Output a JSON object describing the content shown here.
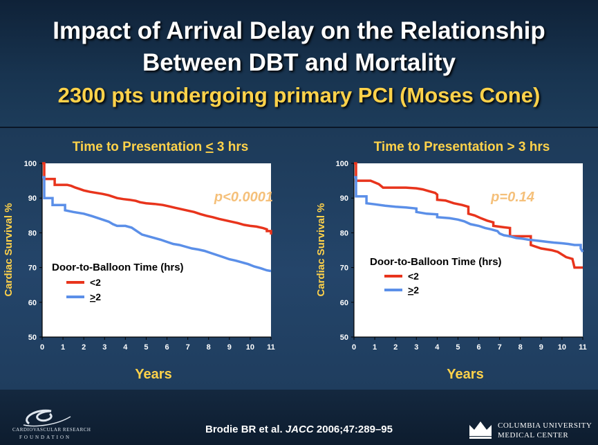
{
  "slide": {
    "title_line1": "Impact of Arrival Delay on the Relationship",
    "title_line2": "Between DBT and Mortality",
    "subtitle": "2300 pts undergoing primary PCI (Moses Cone)",
    "citation_prefix": "Brodie BR et al. ",
    "citation_journal": "JACC",
    "citation_suffix": " 2006;47:289–95",
    "logo_left_line1": "CARDIOVASCULAR RESEARCH",
    "logo_left_line2": "FOUNDATION",
    "logo_right_line1": "COLUMBIA UNIVERSITY",
    "logo_right_line2": "MEDICAL CENTER"
  },
  "colors": {
    "red_series": "#e8341c",
    "blue_series": "#5b8fe8",
    "yellow_text": "#ffd24a",
    "pvalue_text": "#f5c07a"
  },
  "chart_data": [
    {
      "type": "line",
      "title_prefix": "Time to Presentation ",
      "title_symbol": "<",
      "title_suffix": " 3 hrs",
      "xlabel": "Years",
      "ylabel": "Cardiac Survival %",
      "xlim": [
        0,
        11
      ],
      "ylim": [
        50,
        100
      ],
      "xticks": [
        0,
        1,
        2,
        3,
        4,
        5,
        6,
        7,
        8,
        9,
        10,
        11
      ],
      "yticks": [
        50,
        60,
        70,
        80,
        90,
        100
      ],
      "annotation": "p<0.0001",
      "legend_title": "Door-to-Balloon Time (hrs)",
      "series": [
        {
          "name": "<2",
          "color": "#e8341c",
          "x": [
            0,
            0.1,
            0.1,
            0.6,
            0.6,
            1.2,
            1.4,
            1.6,
            1.8,
            2.0,
            2.3,
            2.6,
            2.9,
            3.2,
            3.4,
            3.6,
            3.9,
            4.2,
            4.5,
            4.7,
            5.0,
            5.4,
            5.8,
            6.1,
            6.4,
            6.7,
            7.0,
            7.3,
            7.6,
            7.9,
            8.2,
            8.5,
            8.8,
            9.1,
            9.4,
            9.7,
            10.0,
            10.3,
            10.6,
            10.8,
            10.8,
            11.0,
            11.0
          ],
          "y": [
            100,
            100,
            95.5,
            95.5,
            93.8,
            93.8,
            93.5,
            93,
            92.6,
            92.2,
            91.8,
            91.5,
            91.2,
            90.8,
            90.4,
            90,
            89.7,
            89.5,
            89.2,
            88.8,
            88.5,
            88.3,
            88,
            87.6,
            87.2,
            86.8,
            86.4,
            86,
            85.4,
            84.9,
            84.5,
            84,
            83.6,
            83.2,
            82.8,
            82.3,
            82,
            81.8,
            81.4,
            81,
            80.5,
            80.5,
            79.5
          ]
        },
        {
          "name": ">2",
          "name_symbol": ">",
          "name_value": "2",
          "color": "#5b8fe8",
          "x": [
            0,
            0.1,
            0.1,
            0.5,
            0.5,
            1.1,
            1.1,
            1.5,
            2.0,
            2.4,
            2.8,
            3.2,
            3.4,
            3.6,
            4.0,
            4.3,
            4.6,
            4.8,
            5.1,
            5.4,
            5.7,
            6.0,
            6.3,
            6.6,
            6.9,
            7.2,
            7.5,
            7.8,
            8.1,
            8.4,
            8.7,
            9.0,
            9.3,
            9.6,
            9.9,
            10.2,
            10.5,
            10.8,
            11.0
          ],
          "y": [
            96,
            96,
            90,
            90,
            88,
            88,
            86.5,
            86,
            85.5,
            84.8,
            84,
            83.2,
            82.5,
            82,
            82,
            81.5,
            80.3,
            79.5,
            79,
            78.5,
            78,
            77.4,
            76.8,
            76.5,
            76,
            75.5,
            75.2,
            74.8,
            74.2,
            73.6,
            73,
            72.4,
            72,
            71.5,
            71,
            70.3,
            69.8,
            69.2,
            69
          ]
        }
      ]
    },
    {
      "type": "line",
      "title": "Time to Presentation > 3 hrs",
      "xlabel": "Years",
      "ylabel": "Cardiac Survival %",
      "xlim": [
        0,
        11
      ],
      "ylim": [
        50,
        100
      ],
      "xticks": [
        0,
        1,
        2,
        3,
        4,
        5,
        6,
        7,
        8,
        9,
        10,
        11
      ],
      "yticks": [
        50,
        60,
        70,
        80,
        90,
        100
      ],
      "annotation": "p=0.14",
      "legend_title": "Door-to-Balloon Time (hrs)",
      "series": [
        {
          "name": "<2",
          "color": "#e8341c",
          "x": [
            0,
            0.1,
            0.1,
            0.8,
            1.0,
            1.2,
            1.4,
            2.0,
            2.5,
            3.0,
            3.3,
            3.6,
            3.9,
            4.0,
            4.0,
            4.4,
            4.8,
            5.2,
            5.5,
            5.5,
            5.8,
            6.1,
            6.4,
            6.7,
            6.7,
            7.2,
            7.5,
            7.5,
            8.5,
            8.5,
            9.0,
            9.5,
            9.8,
            10.2,
            10.5,
            10.6,
            11.0
          ],
          "y": [
            100,
            100,
            95,
            95,
            94.5,
            94,
            93,
            93,
            93,
            92.8,
            92.5,
            92,
            91.5,
            91,
            89.5,
            89.3,
            88.5,
            88,
            87.5,
            85.5,
            85,
            84.2,
            83.5,
            83,
            82,
            81.6,
            81.4,
            79,
            79,
            76.5,
            75.5,
            75,
            74.5,
            73,
            72.5,
            70,
            70
          ]
        },
        {
          "name": ">2",
          "name_symbol": ">",
          "name_value": "2",
          "color": "#5b8fe8",
          "x": [
            0,
            0.1,
            0.1,
            0.6,
            0.6,
            1.0,
            1.5,
            2.0,
            2.5,
            3.0,
            3.0,
            3.5,
            4.0,
            4.0,
            4.6,
            5.0,
            5.3,
            5.6,
            6.0,
            6.3,
            6.6,
            6.9,
            7.0,
            7.2,
            7.5,
            7.8,
            8.1,
            8.4,
            8.7,
            9.0,
            9.3,
            9.6,
            10.0,
            10.3,
            10.6,
            10.9,
            10.9,
            11.0
          ],
          "y": [
            96,
            96,
            90.5,
            90.5,
            88.5,
            88.2,
            87.8,
            87.5,
            87.3,
            87,
            86,
            85.5,
            85.3,
            84.5,
            84.2,
            83.8,
            83.3,
            82.5,
            82,
            81.4,
            81,
            80.5,
            79.8,
            79.3,
            79,
            78.5,
            78.3,
            78,
            77.8,
            77.6,
            77.4,
            77.2,
            77,
            76.8,
            76.5,
            76.5,
            75.5,
            74.5
          ]
        }
      ]
    }
  ]
}
